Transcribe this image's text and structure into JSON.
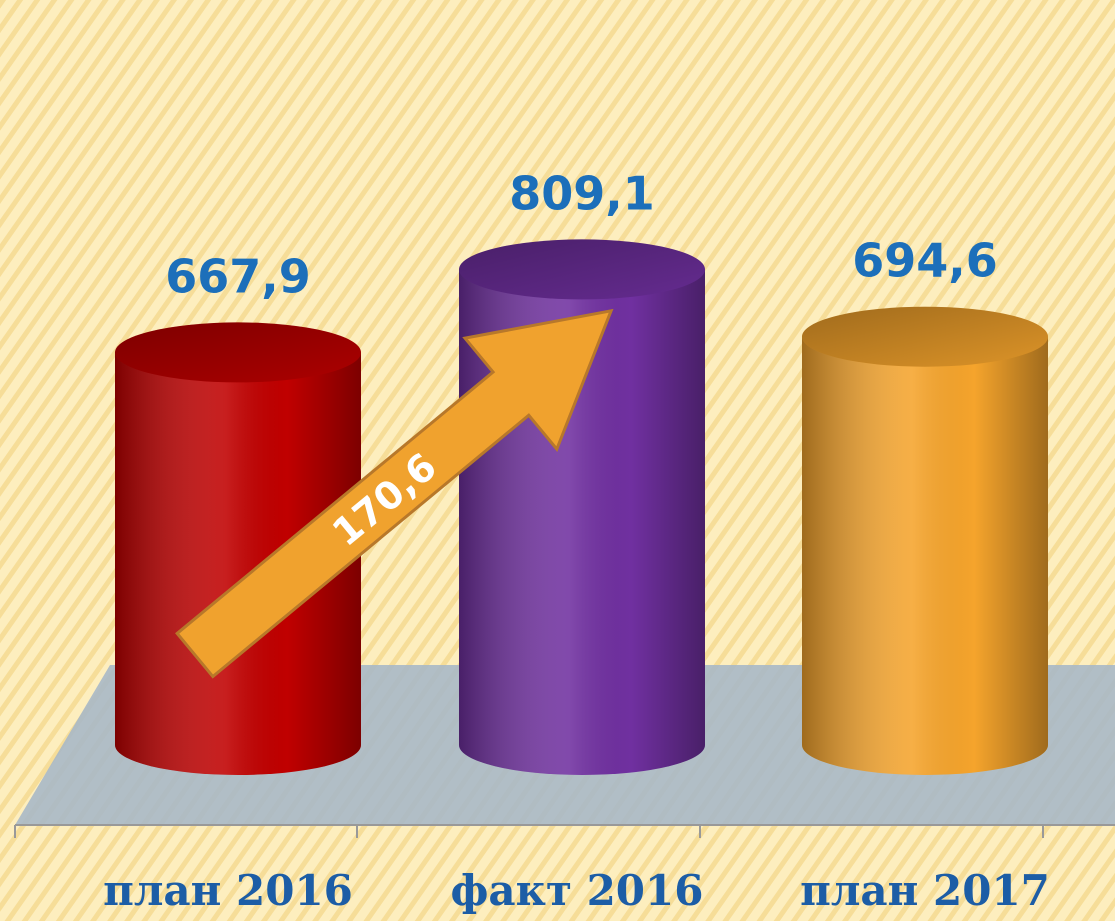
{
  "chart_data": {
    "type": "cylinder",
    "categories": [
      "план 2016",
      "факт 2016",
      "план 2017"
    ],
    "values": [
      667.9,
      809.1,
      694.6
    ],
    "value_labels": [
      "667,9",
      "809,1",
      "694,6"
    ],
    "colors": [
      "#c00000",
      "#7030a0",
      "#f5a42c"
    ],
    "ylim": [
      0,
      900
    ],
    "annotation": "170,6"
  }
}
